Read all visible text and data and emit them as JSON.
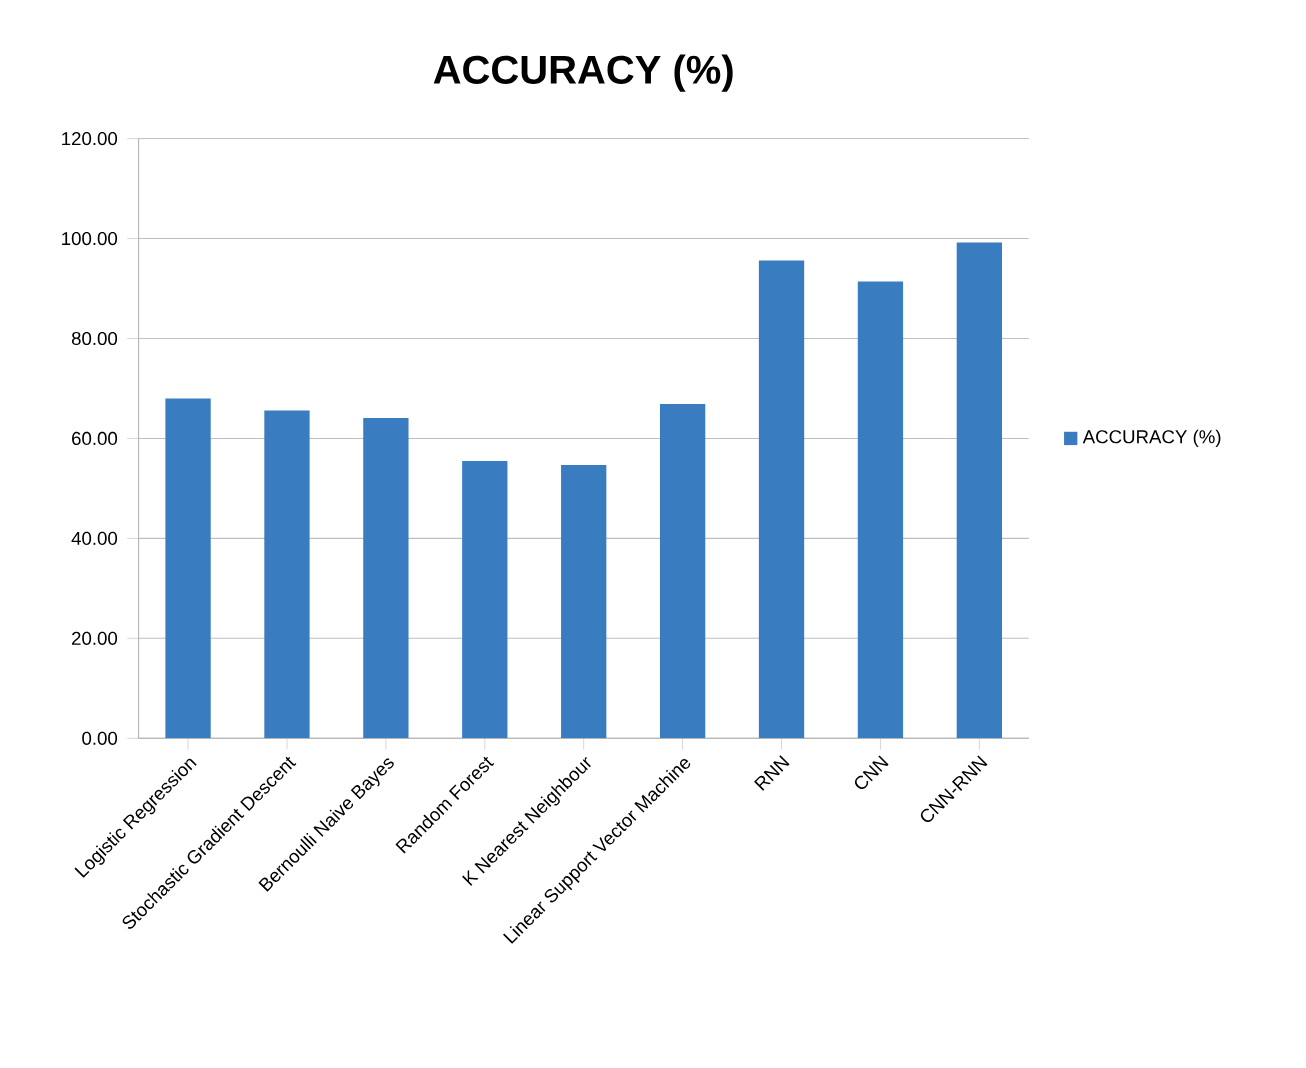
{
  "chart_data": {
    "type": "bar",
    "title": "ACCURACY (%)",
    "categories": [
      "Logistic Regression",
      "Stochastic Gradient Descent",
      "Bernoulli Naive Bayes",
      "Random Forest",
      "K Nearest Neighbour",
      "Linear Support Vector Machine",
      "RNN",
      "CNN",
      "CNN-RNN"
    ],
    "series": [
      {
        "name": "ACCURACY (%)",
        "color": "#3a7cc0",
        "values": [
          68,
          65.6,
          64.1,
          55.5,
          54.7,
          66.9,
          95.6,
          91.4,
          99.2
        ]
      }
    ],
    "ylim": [
      0,
      120
    ],
    "yticks": [
      {
        "value": 0,
        "label": "0.00"
      },
      {
        "value": 20,
        "label": "20.00"
      },
      {
        "value": 40,
        "label": "40.00"
      },
      {
        "value": 60,
        "label": "60.00"
      },
      {
        "value": 80,
        "label": "80.00"
      },
      {
        "value": 100,
        "label": "100.00"
      },
      {
        "value": 120,
        "label": "120.00"
      }
    ],
    "grid": "y",
    "legend": "right"
  }
}
